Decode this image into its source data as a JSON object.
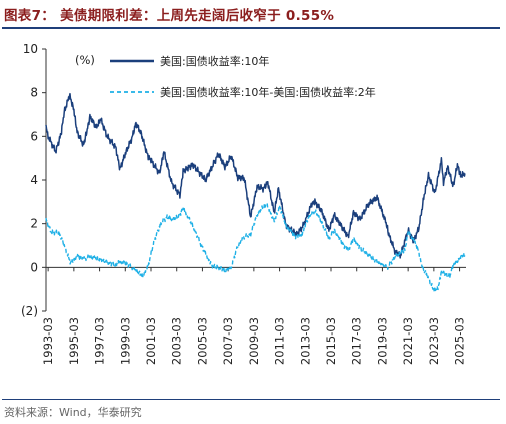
{
  "header": {
    "title": "图表7：  美债期限利差：上周先走阔后收窄于 0.55%"
  },
  "footer": {
    "source": "资料来源：Wind，华泰研究"
  },
  "colors": {
    "title": "#8b1e1e",
    "rule": "#1f3f7a",
    "series_10y": "#1b3f7c",
    "series_spread": "#1fb0e6"
  },
  "chart_data": {
    "type": "line",
    "unit_label": "(%)",
    "xlabel": "",
    "ylabel": "",
    "ylim": [
      -2,
      10
    ],
    "xlim": [
      "1993-01",
      "2025-09"
    ],
    "y_ticks": [
      10,
      8,
      6,
      4,
      2,
      0,
      -2
    ],
    "y_tick_labels": [
      "10",
      "8",
      "6",
      "4",
      "2",
      "0",
      "(2)"
    ],
    "x_tick_labels": [
      "1993-03",
      "1995-03",
      "1997-03",
      "1999-03",
      "2001-03",
      "2003-03",
      "2005-03",
      "2007-03",
      "2009-03",
      "2011-03",
      "2013-03",
      "2015-03",
      "2017-03",
      "2019-03",
      "2021-03",
      "2023-03",
      "2025-03"
    ],
    "legend_position": "top",
    "series": [
      {
        "name": "美国:国债收益率:10年",
        "style": "solid",
        "points": [
          [
            "1993-01",
            6.4
          ],
          [
            "1993-03",
            6.0
          ],
          [
            "1993-10",
            5.3
          ],
          [
            "1994-03",
            6.1
          ],
          [
            "1994-06",
            7.1
          ],
          [
            "1994-11",
            7.9
          ],
          [
            "1995-03",
            7.2
          ],
          [
            "1995-06",
            6.2
          ],
          [
            "1995-12",
            5.6
          ],
          [
            "1996-03",
            6.2
          ],
          [
            "1996-06",
            6.9
          ],
          [
            "1996-12",
            6.4
          ],
          [
            "1997-04",
            6.8
          ],
          [
            "1997-10",
            6.0
          ],
          [
            "1998-06",
            5.5
          ],
          [
            "1998-10",
            4.5
          ],
          [
            "1999-03",
            5.2
          ],
          [
            "1999-09",
            5.9
          ],
          [
            "2000-01",
            6.6
          ],
          [
            "2000-06",
            6.1
          ],
          [
            "2000-12",
            5.1
          ],
          [
            "2001-03",
            4.9
          ],
          [
            "2001-11",
            4.3
          ],
          [
            "2002-03",
            5.3
          ],
          [
            "2002-10",
            3.9
          ],
          [
            "2003-06",
            3.3
          ],
          [
            "2003-09",
            4.4
          ],
          [
            "2004-06",
            4.7
          ],
          [
            "2005-06",
            4.0
          ],
          [
            "2006-06",
            5.2
          ],
          [
            "2006-12",
            4.6
          ],
          [
            "2007-06",
            5.1
          ],
          [
            "2007-12",
            4.1
          ],
          [
            "2008-06",
            4.1
          ],
          [
            "2008-12",
            2.3
          ],
          [
            "2009-06",
            3.7
          ],
          [
            "2009-12",
            3.6
          ],
          [
            "2010-04",
            3.9
          ],
          [
            "2010-10",
            2.5
          ],
          [
            "2011-02",
            3.6
          ],
          [
            "2011-09",
            1.9
          ],
          [
            "2012-07",
            1.5
          ],
          [
            "2013-01",
            1.9
          ],
          [
            "2013-09",
            2.9
          ],
          [
            "2013-12",
            3.0
          ],
          [
            "2014-06",
            2.6
          ],
          [
            "2015-01",
            1.7
          ],
          [
            "2015-06",
            2.4
          ],
          [
            "2016-07",
            1.4
          ],
          [
            "2016-12",
            2.5
          ],
          [
            "2017-06",
            2.2
          ],
          [
            "2018-02",
            2.9
          ],
          [
            "2018-10",
            3.2
          ],
          [
            "2019-06",
            2.1
          ],
          [
            "2019-09",
            1.5
          ],
          [
            "2020-03",
            0.7
          ],
          [
            "2020-08",
            0.55
          ],
          [
            "2021-03",
            1.7
          ],
          [
            "2021-08",
            1.2
          ],
          [
            "2022-01",
            1.8
          ],
          [
            "2022-06",
            3.3
          ],
          [
            "2022-10",
            4.2
          ],
          [
            "2023-04",
            3.4
          ],
          [
            "2023-10",
            4.9
          ],
          [
            "2023-12",
            3.9
          ],
          [
            "2024-04",
            4.6
          ],
          [
            "2024-09",
            3.7
          ],
          [
            "2025-01",
            4.7
          ],
          [
            "2025-04",
            4.2
          ],
          [
            "2025-08",
            4.3
          ]
        ]
      },
      {
        "name": "美国:国债收益率:10年-美国:国债收益率:2年",
        "style": "dashed",
        "points": [
          [
            "1993-01",
            2.2
          ],
          [
            "1993-06",
            1.6
          ],
          [
            "1994-01",
            1.6
          ],
          [
            "1994-06",
            1.0
          ],
          [
            "1994-12",
            0.2
          ],
          [
            "1995-06",
            0.5
          ],
          [
            "1996-01",
            0.4
          ],
          [
            "1996-06",
            0.5
          ],
          [
            "1997-01",
            0.4
          ],
          [
            "1997-12",
            0.2
          ],
          [
            "1998-06",
            0.1
          ],
          [
            "1998-09",
            0.25
          ],
          [
            "1999-03",
            0.2
          ],
          [
            "2000-03",
            -0.2
          ],
          [
            "2000-07",
            -0.4
          ],
          [
            "2000-12",
            0.0
          ],
          [
            "2001-06",
            1.2
          ],
          [
            "2001-12",
            2.0
          ],
          [
            "2002-06",
            2.3
          ],
          [
            "2002-12",
            2.2
          ],
          [
            "2003-06",
            2.4
          ],
          [
            "2003-09",
            2.7
          ],
          [
            "2004-06",
            1.9
          ],
          [
            "2005-01",
            1.1
          ],
          [
            "2005-12",
            0.05
          ],
          [
            "2006-06",
            0.0
          ],
          [
            "2006-12",
            -0.15
          ],
          [
            "2007-06",
            0.0
          ],
          [
            "2007-12",
            1.0
          ],
          [
            "2008-06",
            1.4
          ],
          [
            "2008-12",
            1.5
          ],
          [
            "2009-06",
            2.4
          ],
          [
            "2009-12",
            2.8
          ],
          [
            "2010-03",
            2.9
          ],
          [
            "2010-10",
            2.1
          ],
          [
            "2011-03",
            2.8
          ],
          [
            "2011-09",
            1.9
          ],
          [
            "2012-06",
            1.4
          ],
          [
            "2012-12",
            1.5
          ],
          [
            "2013-06",
            2.3
          ],
          [
            "2013-12",
            2.6
          ],
          [
            "2014-06",
            2.1
          ],
          [
            "2015-01",
            1.3
          ],
          [
            "2015-06",
            1.7
          ],
          [
            "2016-03",
            1.0
          ],
          [
            "2016-07",
            0.8
          ],
          [
            "2016-12",
            1.3
          ],
          [
            "2017-06",
            0.9
          ],
          [
            "2018-06",
            0.4
          ],
          [
            "2018-12",
            0.2
          ],
          [
            "2019-08",
            0.0
          ],
          [
            "2020-03",
            0.5
          ],
          [
            "2020-12",
            0.8
          ],
          [
            "2021-03",
            1.6
          ],
          [
            "2021-09",
            1.2
          ],
          [
            "2022-01",
            0.7
          ],
          [
            "2022-04",
            0.05
          ],
          [
            "2022-10",
            -0.5
          ],
          [
            "2023-03",
            -1.05
          ],
          [
            "2023-07",
            -0.95
          ],
          [
            "2023-10",
            -0.2
          ],
          [
            "2024-01",
            -0.3
          ],
          [
            "2024-06",
            -0.4
          ],
          [
            "2024-09",
            0.1
          ],
          [
            "2025-01",
            0.3
          ],
          [
            "2025-05",
            0.5
          ],
          [
            "2025-08",
            0.6
          ]
        ]
      }
    ]
  }
}
